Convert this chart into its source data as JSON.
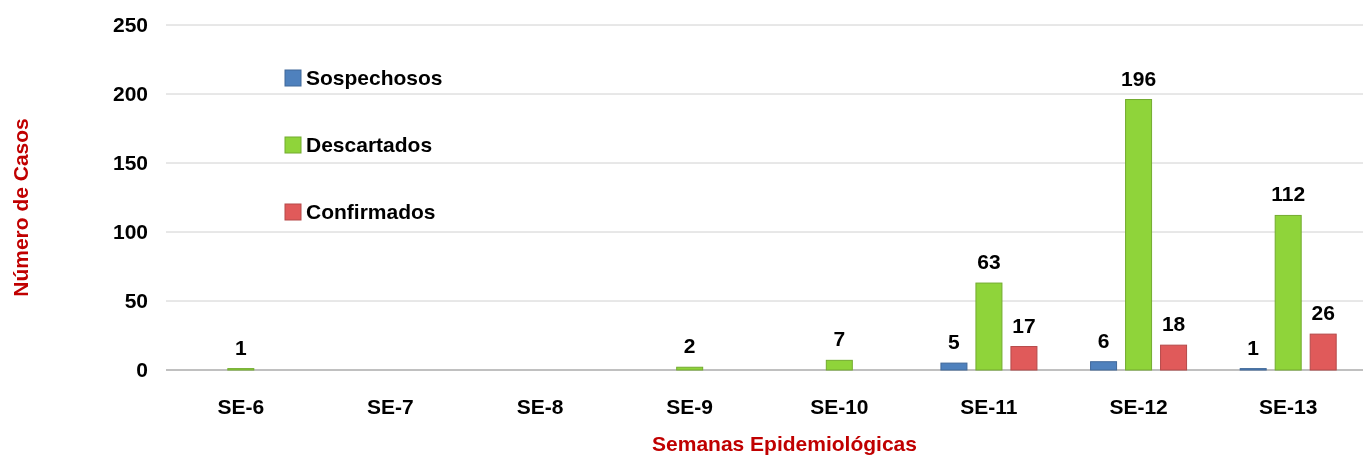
{
  "chart_data": {
    "type": "bar",
    "xlabel": "Semanas Epidemiológicas",
    "ylabel": "Número de Casos",
    "categories": [
      "SE-6",
      "SE-7",
      "SE-8",
      "SE-9",
      "SE-10",
      "SE-11",
      "SE-12",
      "SE-13"
    ],
    "series": [
      {
        "name": "Sospechosos",
        "color": "#4f81bd",
        "values": [
          null,
          null,
          null,
          null,
          null,
          5,
          6,
          1
        ]
      },
      {
        "name": "Descartados",
        "color": "#8fd43a",
        "values": [
          1,
          null,
          null,
          2,
          7,
          63,
          196,
          112
        ]
      },
      {
        "name": "Confirmados",
        "color": "#e05a5a",
        "values": [
          null,
          null,
          null,
          null,
          null,
          17,
          18,
          26
        ]
      }
    ],
    "ylim": [
      0,
      250
    ],
    "yticks": [
      0,
      50,
      100,
      150,
      200,
      250
    ],
    "grid": "y",
    "legend": "top left",
    "data_labels": true
  }
}
